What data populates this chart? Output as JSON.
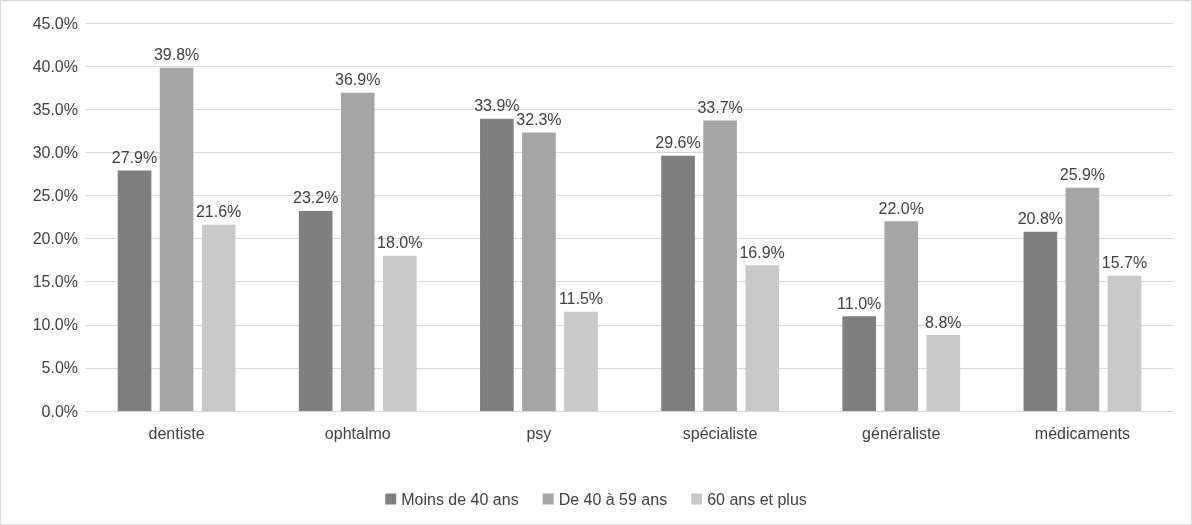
{
  "chart_data": {
    "type": "bar",
    "categories": [
      "dentiste",
      "ophtalmo",
      "psy",
      "spécialiste",
      "généraliste",
      "médicaments"
    ],
    "series": [
      {
        "name": "Moins de 40 ans",
        "color": "#7f7f7f",
        "values": [
          27.9,
          23.2,
          33.9,
          29.6,
          11.0,
          20.8
        ],
        "value_labels": [
          "27.9%",
          "23.2%",
          "33.9%",
          "29.6%",
          "11.0%",
          "20.8%"
        ]
      },
      {
        "name": "De 40 à 59 ans",
        "color": "#a5a5a5",
        "values": [
          39.8,
          36.9,
          32.3,
          33.7,
          22.0,
          25.9
        ],
        "value_labels": [
          "39.8%",
          "36.9%",
          "32.3%",
          "33.7%",
          "22.0%",
          "25.9%"
        ]
      },
      {
        "name": "60 ans et plus",
        "color": "#c9c9c9",
        "values": [
          21.6,
          18.0,
          11.5,
          16.9,
          8.8,
          15.7
        ],
        "value_labels": [
          "21.6%",
          "18.0%",
          "11.5%",
          "16.9%",
          "8.8%",
          "15.7%"
        ]
      }
    ],
    "ylim": [
      0,
      45
    ],
    "yticks": [
      {
        "value": 0,
        "label": "0.0%"
      },
      {
        "value": 5,
        "label": "5.0%"
      },
      {
        "value": 10,
        "label": "10.0%"
      },
      {
        "value": 15,
        "label": "15.0%"
      },
      {
        "value": 20,
        "label": "20.0%"
      },
      {
        "value": 25,
        "label": "25.0%"
      },
      {
        "value": 30,
        "label": "30.0%"
      },
      {
        "value": 35,
        "label": "35.0%"
      },
      {
        "value": 40,
        "label": "40.0%"
      },
      {
        "value": 45,
        "label": "45.0%"
      }
    ],
    "grid": "y",
    "legend": "bottom"
  }
}
